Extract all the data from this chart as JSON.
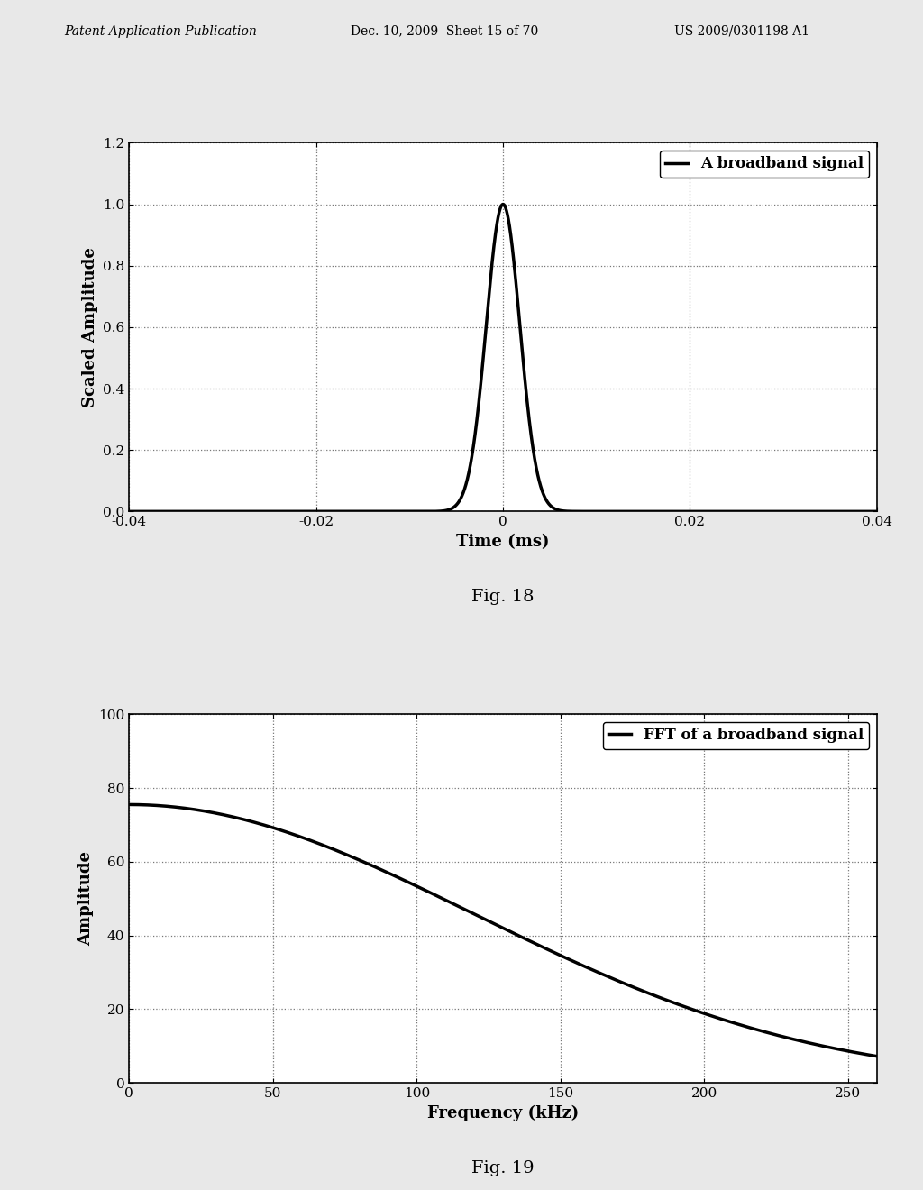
{
  "header_left": "Patent Application Publication",
  "header_mid": "Dec. 10, 2009  Sheet 15 of 70",
  "header_right": "US 2009/0301198 A1",
  "fig18": {
    "xlabel": "Time (ms)",
    "ylabel": "Scaled Amplitude",
    "legend": "A broadband signal",
    "xlim": [
      -0.04,
      0.04
    ],
    "ylim": [
      0,
      1.2
    ],
    "yticks": [
      0,
      0.2,
      0.4,
      0.6,
      0.8,
      1.0,
      1.2
    ],
    "xticks": [
      -0.04,
      -0.02,
      0,
      0.02,
      0.04
    ],
    "signal_sigma": 0.0018,
    "fig_label": "Fig. 18"
  },
  "fig19": {
    "xlabel": "Frequency (kHz)",
    "ylabel": "Amplitude",
    "legend": "FFT of a broadband signal",
    "xlim": [
      0,
      260
    ],
    "ylim": [
      0,
      100
    ],
    "yticks": [
      0,
      20,
      40,
      60,
      80,
      100
    ],
    "xticks": [
      0,
      50,
      100,
      150,
      200,
      250
    ],
    "fft_scale": 75.5,
    "fft_sigma": 120.0,
    "fig_label": "Fig. 19"
  },
  "line_color": "#000000",
  "line_width": 2.5,
  "grid_color": "#777777",
  "grid_linestyle": ":",
  "grid_linewidth": 0.9,
  "bg_color": "#ffffff",
  "page_bg": "#e8e8e8",
  "font_color": "#000000",
  "axis_label_fontsize": 13,
  "tick_fontsize": 11,
  "legend_fontsize": 12,
  "header_fontsize": 10,
  "fig_label_fontsize": 14
}
